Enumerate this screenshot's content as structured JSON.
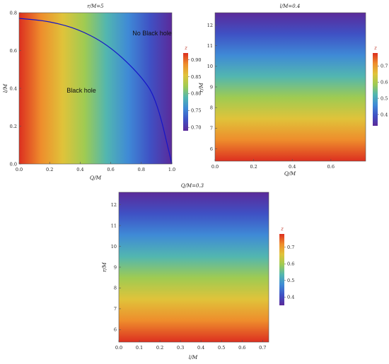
{
  "colors": {
    "colormap": [
      "#5b2a9a",
      "#3f51c4",
      "#3f8ad6",
      "#52b6b0",
      "#9fcb52",
      "#e0c33a",
      "#ee8d2c",
      "#dc2f20"
    ],
    "boundary_curve": "#1515c8",
    "frame": "#555555"
  },
  "chart_data": [
    {
      "type": "heatmap",
      "title": "r/M=5",
      "xlabel": "Q/M",
      "ylabel": "l/M",
      "xlim": [
        0,
        1.0
      ],
      "ylim": [
        0,
        0.8
      ],
      "xticks": [
        "0.0",
        "0.2",
        "0.4",
        "0.6",
        "0.8",
        "1.0"
      ],
      "yticks": [
        "0.0",
        "0.2",
        "0.4",
        "0.6",
        "0.8"
      ],
      "colorbar": {
        "title": "z",
        "range": [
          0.69,
          0.92
        ],
        "ticks": [
          "0.70",
          "0.75",
          "0.80",
          "0.85",
          "0.90"
        ]
      },
      "gradient_direction": "x",
      "boundary": {
        "description": "horizon existence boundary",
        "points": [
          [
            0.0,
            0.77
          ],
          [
            0.2,
            0.755
          ],
          [
            0.4,
            0.71
          ],
          [
            0.6,
            0.62
          ],
          [
            0.8,
            0.465
          ],
          [
            0.9,
            0.34
          ],
          [
            1.0,
            0.0
          ]
        ]
      },
      "annotations": [
        {
          "text": "No Black hole",
          "x": 0.77,
          "y": 0.72
        },
        {
          "text": "Black hole",
          "x": 0.27,
          "y": 0.43
        }
      ]
    },
    {
      "type": "heatmap",
      "title": "l/M=0.4",
      "xlabel": "Q/M",
      "ylabel": "r/M",
      "xlim": [
        0,
        0.78
      ],
      "ylim": [
        5.4,
        12.6
      ],
      "xticks": [
        "0.0",
        "0.2",
        "0.4",
        "0.6"
      ],
      "yticks": [
        "6",
        "7",
        "8",
        "9",
        "10",
        "11",
        "12"
      ],
      "colorbar": {
        "title": "z",
        "range": [
          0.33,
          0.78
        ],
        "ticks": [
          "0.4",
          "0.5",
          "0.6",
          "0.7"
        ]
      },
      "gradient_direction": "y"
    },
    {
      "type": "heatmap",
      "title": "Q/M=0.3",
      "xlabel": "l/M",
      "ylabel": "r/M",
      "xlim": [
        0,
        0.73
      ],
      "ylim": [
        5.4,
        12.6
      ],
      "xticks": [
        "0.0",
        "0.1",
        "0.2",
        "0.3",
        "0.4",
        "0.5",
        "0.6",
        "0.7"
      ],
      "yticks": [
        "6",
        "7",
        "8",
        "9",
        "10",
        "11",
        "12"
      ],
      "colorbar": {
        "title": "z",
        "range": [
          0.35,
          0.78
        ],
        "ticks": [
          "0.4",
          "0.5",
          "0.6",
          "0.7"
        ]
      },
      "gradient_direction": "y"
    }
  ]
}
